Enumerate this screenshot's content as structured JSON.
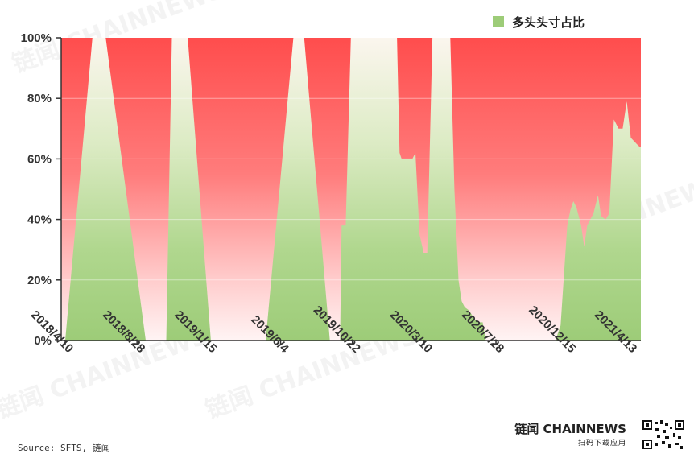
{
  "chart_data": {
    "type": "area",
    "title": "",
    "xlabel": "",
    "ylabel": "",
    "ylim": [
      0,
      100
    ],
    "y_ticks": [
      "0%",
      "20%",
      "40%",
      "60%",
      "80%",
      "100%"
    ],
    "x_ticks": [
      "2018/4/10",
      "2018/8/28",
      "2019/1/15",
      "2019/6/4",
      "2019/10/22",
      "2020/3/10",
      "2020/7/28",
      "2020/12/15",
      "2021/4/13"
    ],
    "legend": {
      "position": "top-right"
    },
    "grid": true,
    "background_color": "#ff4d4d",
    "series": [
      {
        "name": "多头头寸占比",
        "color": "#9dcc78",
        "points": [
          [
            "2018/4/10",
            0
          ],
          [
            "2018/6/2",
            100
          ],
          [
            "2018/6/28",
            100
          ],
          [
            "2018/9/14",
            0
          ],
          [
            "2018/10/24",
            0
          ],
          [
            "2018/11/4",
            100
          ],
          [
            "2018/12/5",
            100
          ],
          [
            "2019/1/19",
            0
          ],
          [
            "2019/5/6",
            0
          ],
          [
            "2019/6/29",
            100
          ],
          [
            "2019/7/20",
            100
          ],
          [
            "2019/9/8",
            0
          ],
          [
            "2019/9/28",
            0
          ],
          [
            "2019/10/1",
            38
          ],
          [
            "2019/10/9",
            38
          ],
          [
            "2019/10/19",
            100
          ],
          [
            "2020/1/17",
            100
          ],
          [
            "2020/1/22",
            62
          ],
          [
            "2020/1/26",
            60
          ],
          [
            "2020/2/16",
            60
          ],
          [
            "2020/2/22",
            62
          ],
          [
            "2020/3/1",
            35
          ],
          [
            "2020/3/9",
            29
          ],
          [
            "2020/3/16",
            29
          ],
          [
            "2020/3/26",
            100
          ],
          [
            "2020/4/30",
            100
          ],
          [
            "2020/5/8",
            50
          ],
          [
            "2020/5/16",
            20
          ],
          [
            "2020/5/22",
            13
          ],
          [
            "2020/5/28",
            11
          ],
          [
            "2020/6/5",
            10
          ],
          [
            "2020/6/17",
            7
          ],
          [
            "2020/6/26",
            6
          ],
          [
            "2020/7/2",
            6
          ],
          [
            "2020/7/8",
            0
          ],
          [
            "2020/11/21",
            0
          ],
          [
            "2020/12/1",
            5
          ],
          [
            "2020/12/14",
            38
          ],
          [
            "2020/12/20",
            43
          ],
          [
            "2020/12/26",
            46
          ],
          [
            "2021/1/1",
            44
          ],
          [
            "2021/1/10",
            38
          ],
          [
            "2021/1/16",
            31
          ],
          [
            "2021/1/22",
            38
          ],
          [
            "2021/2/3",
            42
          ],
          [
            "2021/2/12",
            48
          ],
          [
            "2021/2/18",
            41
          ],
          [
            "2021/2/27",
            40
          ],
          [
            "2021/3/6",
            42
          ],
          [
            "2021/3/15",
            73
          ],
          [
            "2021/3/24",
            70
          ],
          [
            "2021/4/1",
            70
          ],
          [
            "2021/4/9",
            79
          ],
          [
            "2021/4/17",
            67
          ],
          [
            "2021/4/28",
            65
          ],
          [
            "2021/5/4",
            64
          ]
        ]
      }
    ]
  },
  "branding": {
    "watermark": "链闻 CHAINNEWS",
    "logo_text": "链闻 CHAINNEWS",
    "logo_subtext": "扫码下载应用",
    "source_text": "Source: SFTS, 链闻"
  }
}
